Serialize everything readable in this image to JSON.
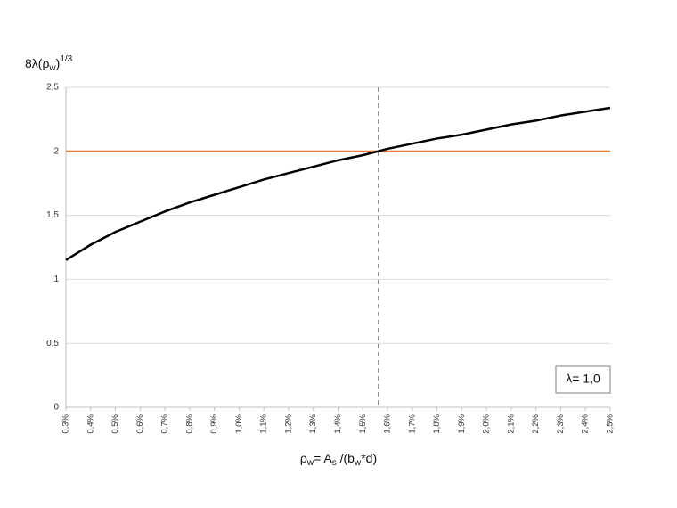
{
  "chart_data": {
    "type": "line",
    "ylabel_parts": [
      "8λ(ρ",
      "w",
      ")",
      "1/3"
    ],
    "xlabel_parts": [
      "ρ",
      "w",
      "= A",
      "s",
      " /(b",
      "w",
      "*d)"
    ],
    "x": [
      0.3,
      0.4,
      0.5,
      0.6,
      0.7,
      0.8,
      0.9,
      1.0,
      1.1,
      1.2,
      1.3,
      1.4,
      1.5,
      1.6,
      1.7,
      1.8,
      1.9,
      2.0,
      2.1,
      2.2,
      2.3,
      2.4,
      2.5
    ],
    "series": [
      {
        "color": "#000000",
        "values": [
          1.15,
          1.27,
          1.37,
          1.45,
          1.53,
          1.6,
          1.66,
          1.72,
          1.78,
          1.83,
          1.88,
          1.93,
          1.97,
          2.02,
          2.06,
          2.1,
          2.13,
          2.17,
          2.21,
          2.24,
          2.28,
          2.31,
          2.34
        ]
      }
    ],
    "xlim": [
      0.3,
      2.5
    ],
    "xticks": [
      {
        "value": 0.3,
        "label": "0,3%"
      },
      {
        "value": 0.4,
        "label": "0,4%"
      },
      {
        "value": 0.5,
        "label": "0,5%"
      },
      {
        "value": 0.6,
        "label": "0,6%"
      },
      {
        "value": 0.7,
        "label": "0,7%"
      },
      {
        "value": 0.8,
        "label": "0,8%"
      },
      {
        "value": 0.9,
        "label": "0,9%"
      },
      {
        "value": 1.0,
        "label": "1,0%"
      },
      {
        "value": 1.1,
        "label": "1,1%"
      },
      {
        "value": 1.2,
        "label": "1,2%"
      },
      {
        "value": 1.3,
        "label": "1,3%"
      },
      {
        "value": 1.4,
        "label": "1,4%"
      },
      {
        "value": 1.5,
        "label": "1,5%"
      },
      {
        "value": 1.6,
        "label": "1,6%"
      },
      {
        "value": 1.7,
        "label": "1,7%"
      },
      {
        "value": 1.8,
        "label": "1,8%"
      },
      {
        "value": 1.9,
        "label": "1,9%"
      },
      {
        "value": 2.0,
        "label": "2,0%"
      },
      {
        "value": 2.1,
        "label": "2,1%"
      },
      {
        "value": 2.2,
        "label": "2,2%"
      },
      {
        "value": 2.3,
        "label": "2,3%"
      },
      {
        "value": 2.4,
        "label": "2,4%"
      },
      {
        "value": 2.5,
        "label": "2,5%"
      }
    ],
    "ylim": [
      0,
      2.5
    ],
    "yticks": [
      0,
      {
        "value": 0.5,
        "label": "0,5"
      },
      1,
      {
        "value": 1.5,
        "label": "1,5"
      },
      2,
      {
        "value": 2.5,
        "label": "2,5"
      }
    ],
    "grid": true,
    "reference_lines": [
      {
        "axis": "y",
        "value": 2,
        "color": "#ed7d31",
        "dashed": false
      },
      {
        "axis": "x",
        "value": 1.5625,
        "color": "#8c8c8c",
        "dashed": true
      }
    ],
    "annotation": "λ= 1,0"
  }
}
